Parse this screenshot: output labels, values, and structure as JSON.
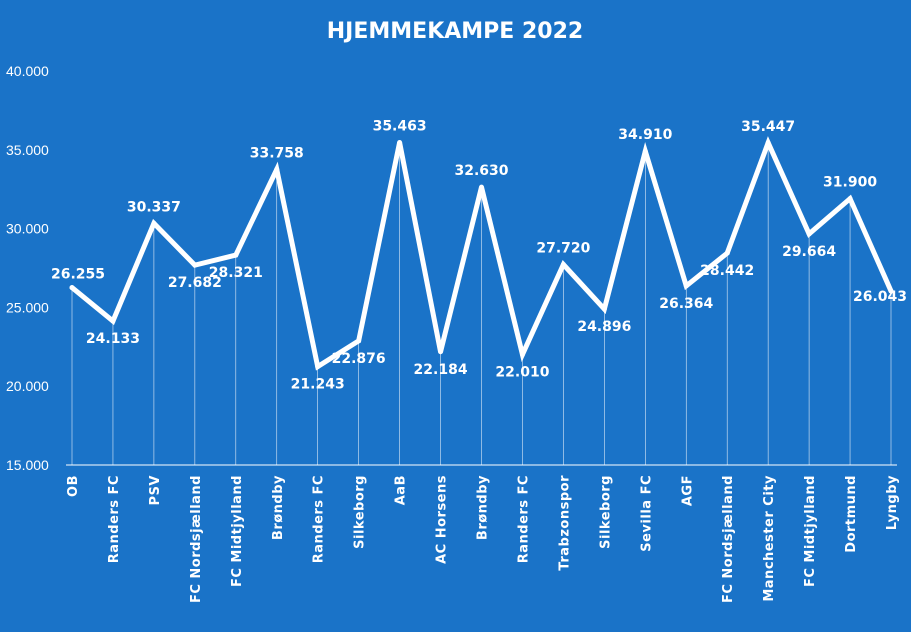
{
  "colors": {
    "background": "#1a73c8",
    "line": "#ffffff",
    "text": "#ffffff"
  },
  "chart_data": {
    "type": "line",
    "title": "HJEMMEKAMPE 2022",
    "xlabel": "",
    "ylabel": "",
    "ylim": [
      15000,
      40000
    ],
    "yticks": [
      15000,
      20000,
      25000,
      30000,
      35000,
      40000
    ],
    "ytick_labels": [
      "15.000",
      "20.000",
      "25.000",
      "30.000",
      "35.000",
      "40.000"
    ],
    "grid": false,
    "legend": "none",
    "categories": [
      "OB",
      "Randers FC",
      "PSV",
      "FC Nordsjælland",
      "FC Midtjylland",
      "Brøndby",
      "Randers FC",
      "Silkeborg",
      "AaB",
      "AC Horsens",
      "Brøndby",
      "Randers FC",
      "Trabzonspor",
      "Silkeborg",
      "Sevilla FC",
      "AGF",
      "FC Nordsjælland",
      "Manchester City",
      "FC Midtjylland",
      "Dortmund",
      "Lyngby"
    ],
    "series": [
      {
        "values": [
          26255,
          24133,
          30337,
          27682,
          28321,
          33758,
          21243,
          22876,
          35463,
          22184,
          32630,
          22010,
          27720,
          24896,
          34910,
          26364,
          28442,
          35447,
          29664,
          31900,
          26043
        ],
        "labels": [
          "26.255",
          "24.133",
          "30.337",
          "27.682",
          "28.321",
          "33.758",
          "21.243",
          "22.876",
          "35.463",
          "22.184",
          "32.630",
          "22.010",
          "27.720",
          "24.896",
          "34.910",
          "26.364",
          "28.442",
          "35.447",
          "29.664",
          "31.900",
          "26.043"
        ]
      }
    ]
  }
}
